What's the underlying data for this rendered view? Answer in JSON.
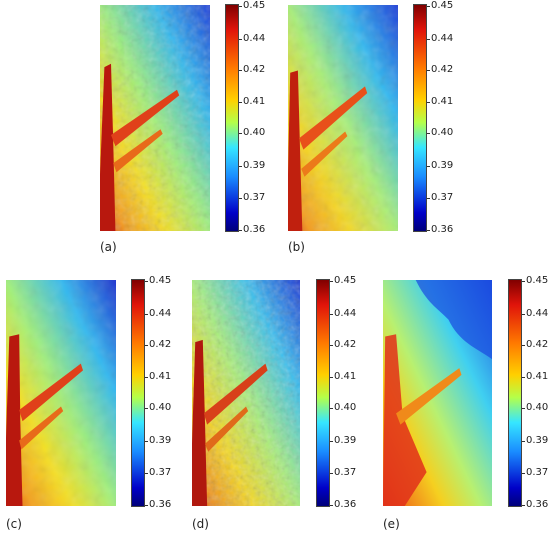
{
  "colorbar_ticks": [
    "0.45",
    "0.44",
    "0.42",
    "0.41",
    "0.40",
    "0.39",
    "0.37",
    "0.36"
  ],
  "panels": [
    {
      "label": "(a)"
    },
    {
      "label": "(b)"
    },
    {
      "label": "(c)"
    },
    {
      "label": "(d)"
    },
    {
      "label": "(e)"
    }
  ]
}
